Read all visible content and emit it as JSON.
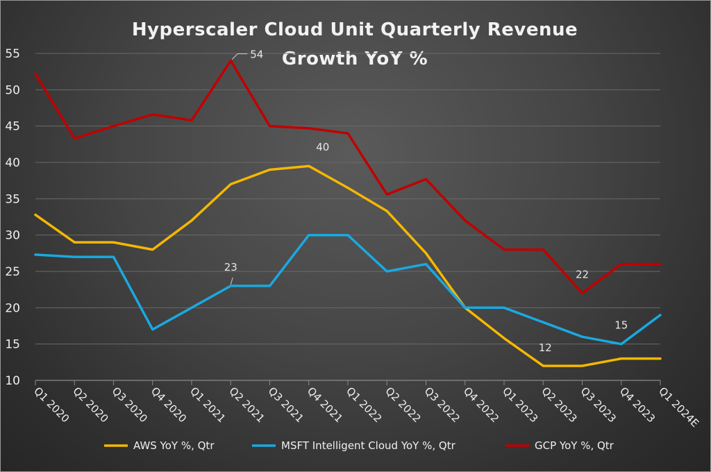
{
  "chart_data": {
    "type": "line",
    "title_line1": "Hyperscaler Cloud Unit Quarterly Revenue",
    "title_line2": "Growth YoY %",
    "xlabel": "",
    "ylabel": "",
    "ylim": [
      10,
      55
    ],
    "yticks": [
      10,
      15,
      20,
      25,
      30,
      35,
      40,
      45,
      50,
      55
    ],
    "grid": true,
    "legend_position": "bottom",
    "categories": [
      "Q1 2020",
      "Q2 2020",
      "Q3 2020",
      "Q4 2020",
      "Q1 2021",
      "Q2 2021",
      "Q3 2021",
      "Q4 2021",
      "Q1 2022",
      "Q2 2022",
      "Q3 2022",
      "Q4 2022",
      "Q1 2023",
      "Q2 2023",
      "Q3 2023",
      "Q4 2023",
      "Q1 2024E"
    ],
    "series": [
      {
        "name": "AWS YoY %, Qtr",
        "color": "#f5b800",
        "values": [
          32.8,
          29,
          29,
          28,
          32,
          37,
          39,
          39.5,
          36.5,
          33.3,
          27.5,
          20,
          15.8,
          12,
          12,
          13,
          13
        ]
      },
      {
        "name": "MSFT Intelligent Cloud YoY %, Qtr",
        "color": "#1aa9e0",
        "values": [
          27.3,
          27,
          27,
          17,
          20,
          23,
          23,
          30,
          30,
          25,
          26,
          20,
          20,
          18,
          16,
          15,
          19
        ]
      },
      {
        "name": "GCP YoY %, Qtr",
        "color": "#c00000",
        "values": [
          52.2,
          43.3,
          45,
          46.6,
          45.8,
          54,
          45,
          44.7,
          44,
          35.6,
          37.7,
          32,
          28,
          28,
          22,
          26,
          26
        ]
      }
    ],
    "annotations": [
      {
        "text": "54",
        "series": 2,
        "index": 5
      },
      {
        "text": "40",
        "series": 0,
        "index": 7
      },
      {
        "text": "23",
        "series": 1,
        "index": 5
      },
      {
        "text": "22",
        "series": 2,
        "index": 14
      },
      {
        "text": "15",
        "series": 1,
        "index": 15
      },
      {
        "text": "12",
        "series": 0,
        "index": 13
      }
    ]
  }
}
